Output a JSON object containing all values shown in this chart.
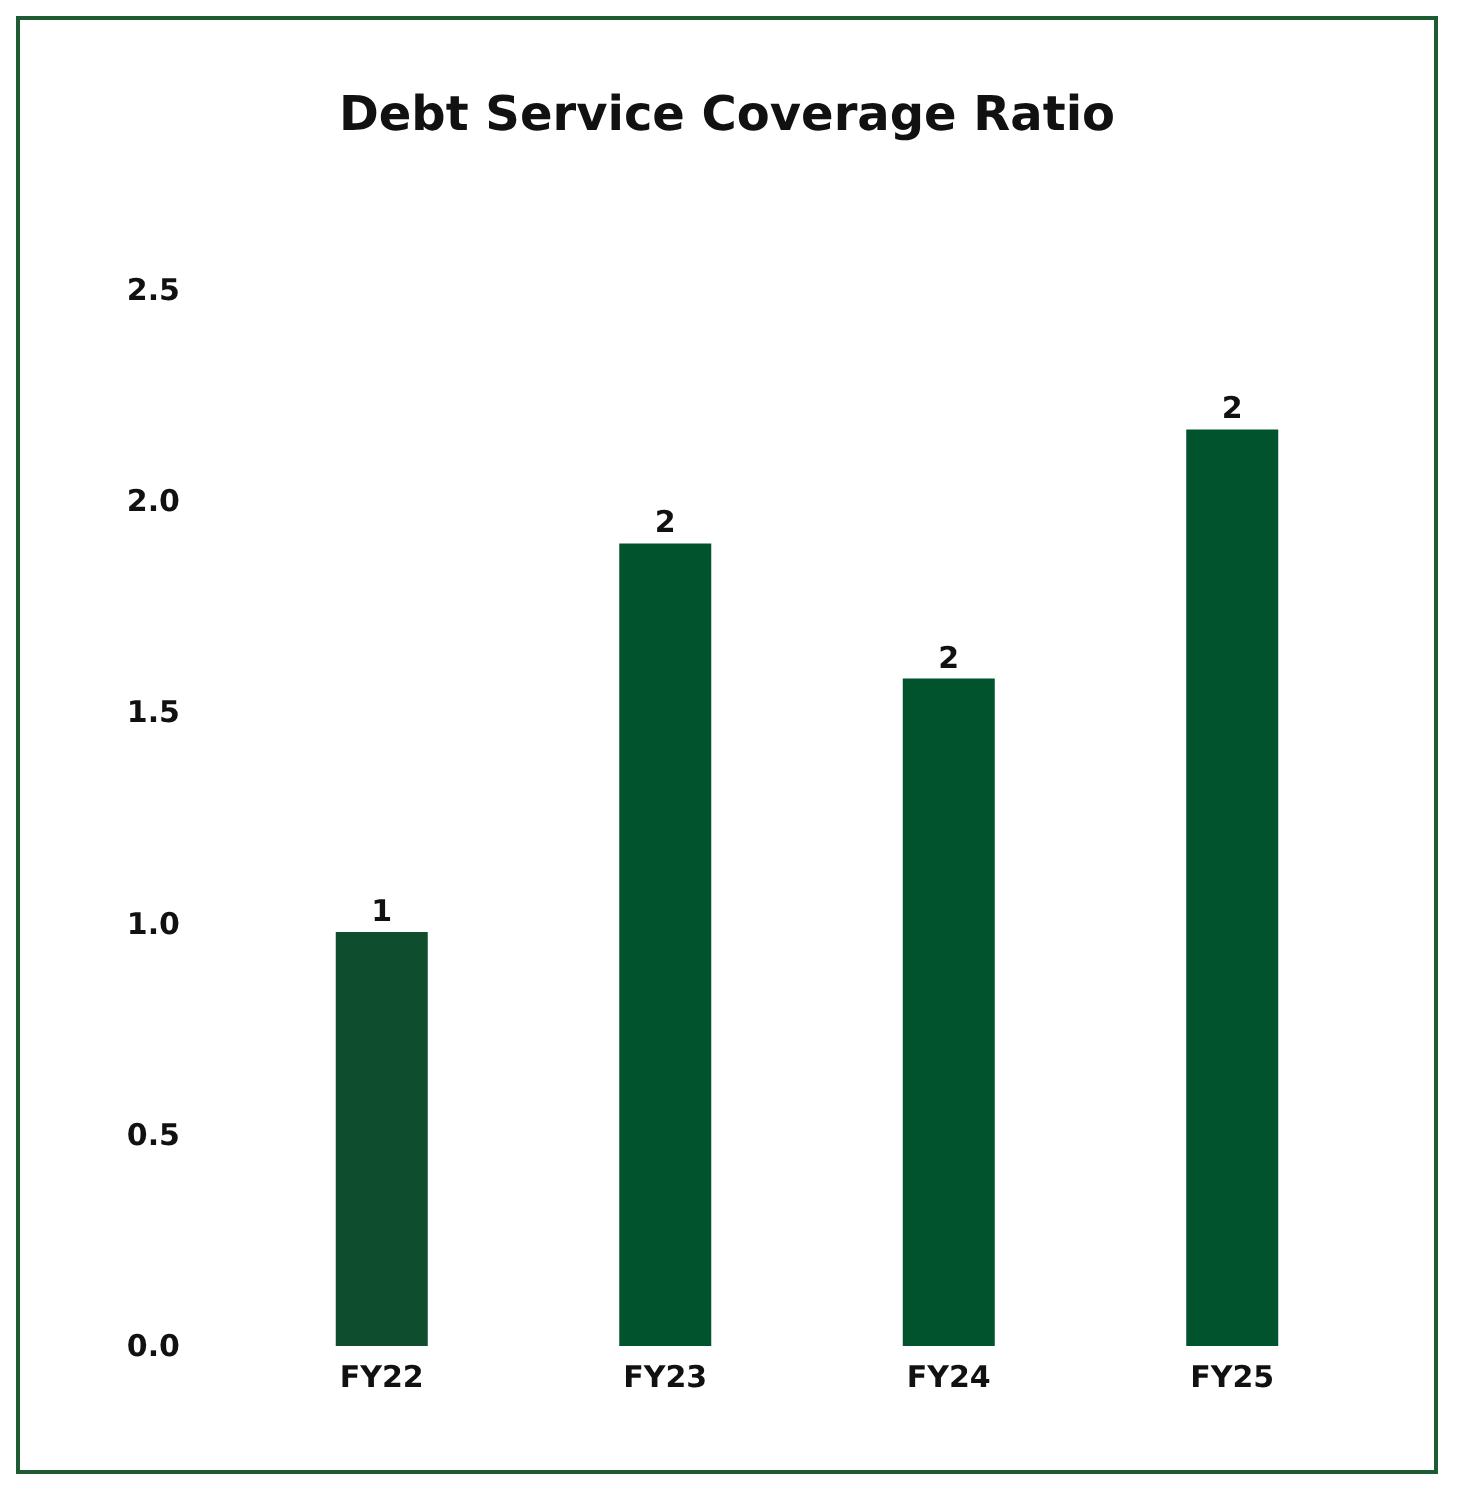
{
  "chart_data": {
    "type": "bar",
    "title": "Debt Service Coverage Ratio",
    "categories": [
      "FY22",
      "FY23",
      "FY24",
      "FY25"
    ],
    "values": [
      0.98,
      1.9,
      1.58,
      2.17
    ],
    "colors": [
      "#0f4d2f",
      "#00532c",
      "#00532c",
      "#00532c"
    ],
    "value_labels": [
      "1",
      "2",
      "2",
      "2"
    ],
    "ylim": [
      0,
      2.5
    ],
    "yticks": [
      {
        "value": 0,
        "label": "0.0"
      },
      0.5,
      {
        "value": 1,
        "label": "1.0"
      },
      1.5,
      {
        "value": 2,
        "label": "2.0"
      },
      2.5
    ],
    "grid": false
  }
}
